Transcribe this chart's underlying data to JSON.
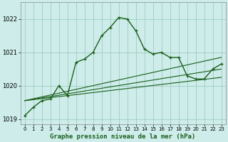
{
  "title": "Graphe pression niveau de la mer (hPa)",
  "bg_color": "#cdecea",
  "line_color": "#1a5e1a",
  "grid_color": "#9ecfbf",
  "xlim": [
    -0.5,
    23.5
  ],
  "ylim": [
    1018.85,
    1022.5
  ],
  "yticks": [
    1019,
    1020,
    1021,
    1022
  ],
  "xticks": [
    0,
    1,
    2,
    3,
    4,
    5,
    6,
    7,
    8,
    9,
    10,
    11,
    12,
    13,
    14,
    15,
    16,
    17,
    18,
    19,
    20,
    21,
    22,
    23
  ],
  "series1_x": [
    0,
    1,
    2,
    3,
    4,
    5,
    6,
    7,
    8,
    9,
    10,
    11,
    12,
    13,
    14,
    15,
    16,
    17,
    18,
    19,
    20,
    21,
    22,
    23
  ],
  "series1_y": [
    1019.1,
    1019.35,
    1019.55,
    1019.6,
    1020.0,
    1019.7,
    1020.7,
    1020.8,
    1021.0,
    1021.5,
    1021.75,
    1022.05,
    1022.0,
    1021.65,
    1021.1,
    1020.95,
    1021.0,
    1020.85,
    1020.85,
    1020.3,
    1020.2,
    1020.2,
    1020.5,
    1020.65
  ],
  "series2_x": [
    0,
    23
  ],
  "series2_y": [
    1019.55,
    1020.85
  ],
  "series3_x": [
    0,
    23
  ],
  "series3_y": [
    1019.55,
    1020.5
  ],
  "series4_x": [
    0,
    23
  ],
  "series4_y": [
    1019.55,
    1020.25
  ]
}
